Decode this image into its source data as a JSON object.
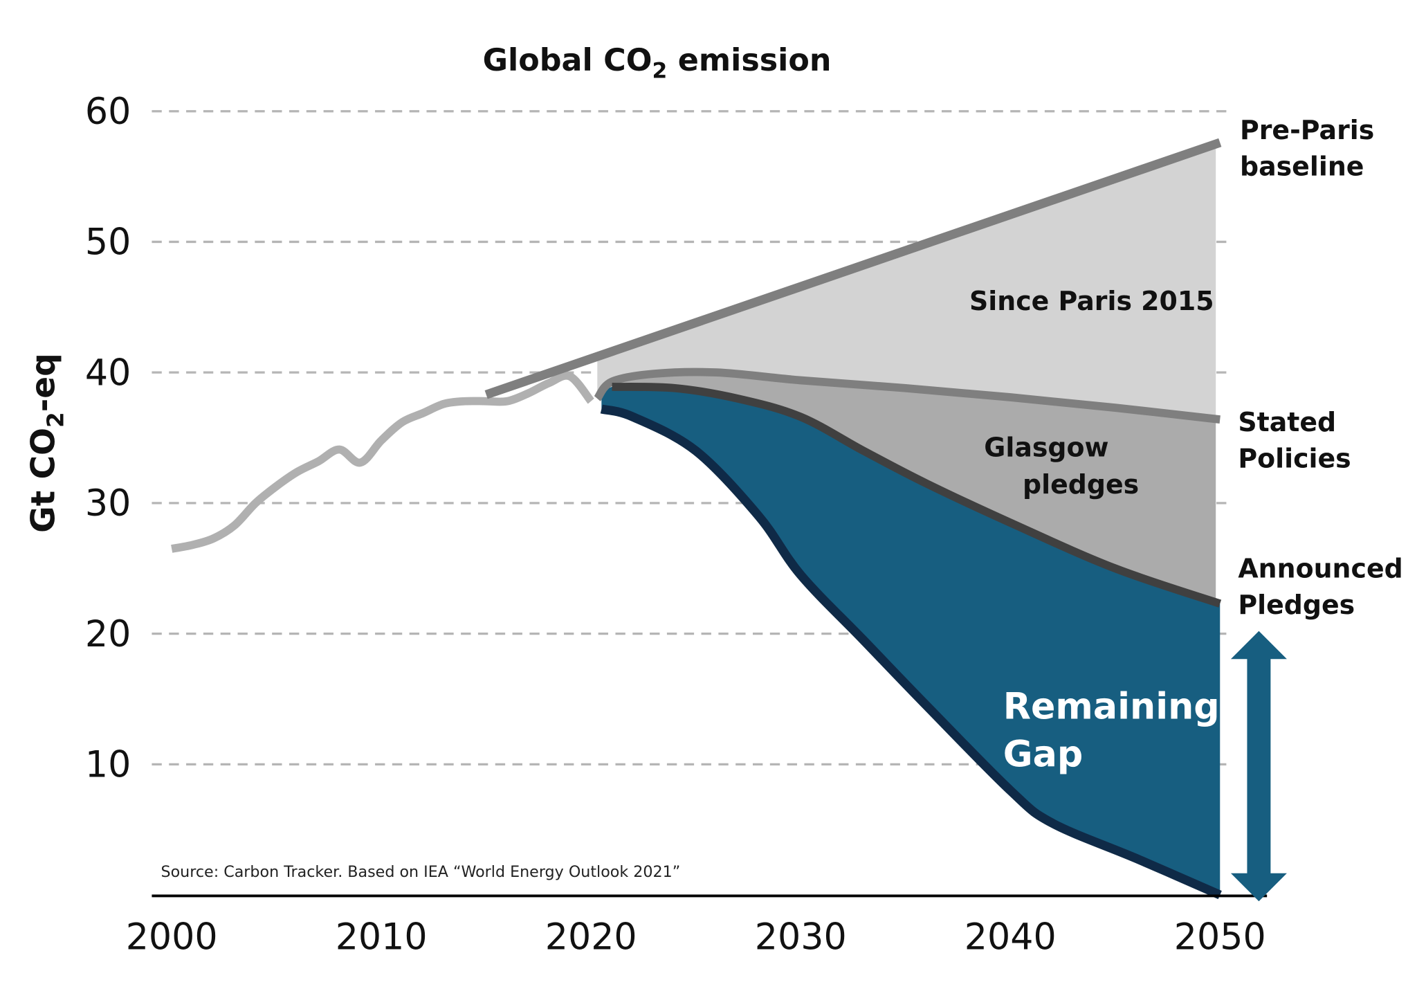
{
  "chart_data": {
    "type": "area",
    "title": "Global CO",
    "title_sub": "2",
    "title_rest": " emission",
    "ylabel": "Gt CO",
    "ylabel_sub": "2",
    "ylabel_rest": "-eq",
    "xlim": [
      2000,
      2050
    ],
    "ylim": [
      0,
      60
    ],
    "grid": true,
    "x_ticks": [
      "2000",
      "2010",
      "2020",
      "2030",
      "2040",
      "2050"
    ],
    "y_ticks": [
      "10",
      "20",
      "30",
      "40",
      "50",
      "60"
    ],
    "source": "Source: Carbon Tracker. Based on IEA “World Energy Outlook 2021”",
    "series": [
      {
        "key": "historical",
        "color": "#b0b0b0",
        "x": [
          2000,
          2001,
          2002,
          2003,
          2004,
          2005,
          2006,
          2007,
          2008,
          2009,
          2010,
          2011,
          2012,
          2013,
          2014,
          2015,
          2016,
          2017,
          2018,
          2019,
          2020
        ],
        "y": [
          26.5,
          26.8,
          27.3,
          28.3,
          30,
          31.3,
          32.4,
          33.2,
          34.1,
          33.1,
          34.8,
          36.2,
          36.9,
          37.6,
          37.8,
          37.8,
          37.8,
          38.4,
          39.2,
          39.7,
          37.8
        ]
      },
      {
        "key": "pre_paris",
        "name": "Pre-Paris baseline",
        "color": "#7f7f7f",
        "x": [
          2015,
          2050
        ],
        "y": [
          38.3,
          57.6
        ]
      },
      {
        "key": "stated",
        "name": "Stated Policies",
        "color": "#7f7f7f",
        "x": [
          2020.3,
          2021,
          2023,
          2026,
          2030,
          2035,
          2040,
          2045,
          2050
        ],
        "y": [
          38,
          39.3,
          39.9,
          40.0,
          39.4,
          38.8,
          38.1,
          37.3,
          36.4
        ]
      },
      {
        "key": "announced",
        "name": "Announced Pledges",
        "color": "#404040",
        "x": [
          2021,
          2024,
          2027,
          2030,
          2033,
          2036,
          2040,
          2045,
          2050
        ],
        "y": [
          38.9,
          38.8,
          38.0,
          36.6,
          34,
          31.5,
          28.5,
          25,
          22.3
        ]
      },
      {
        "key": "net_zero",
        "color": "#0f2a47",
        "x": [
          2020.5,
          2022,
          2025,
          2028,
          2030,
          2033,
          2036,
          2040,
          2042,
          2046,
          2050
        ],
        "y": [
          37.2,
          36.6,
          34,
          29,
          24.5,
          19.5,
          14.5,
          8,
          5.5,
          2.8,
          0
        ]
      }
    ],
    "areas": [
      {
        "label": "Since Paris 2015",
        "color": "#d3d3d3"
      },
      {
        "label_lines": [
          "Glasgow",
          "pledges"
        ],
        "color": "#ababab"
      },
      {
        "label_lines": [
          "Remaining",
          "Gap"
        ],
        "color": "#175e80"
      }
    ],
    "end_labels": {
      "pre_paris": [
        "Pre-Paris",
        "baseline"
      ],
      "stated": [
        "Stated",
        "Policies"
      ],
      "announced": [
        "Announced",
        "Pledges"
      ]
    },
    "arrow_color": "#175e80"
  }
}
